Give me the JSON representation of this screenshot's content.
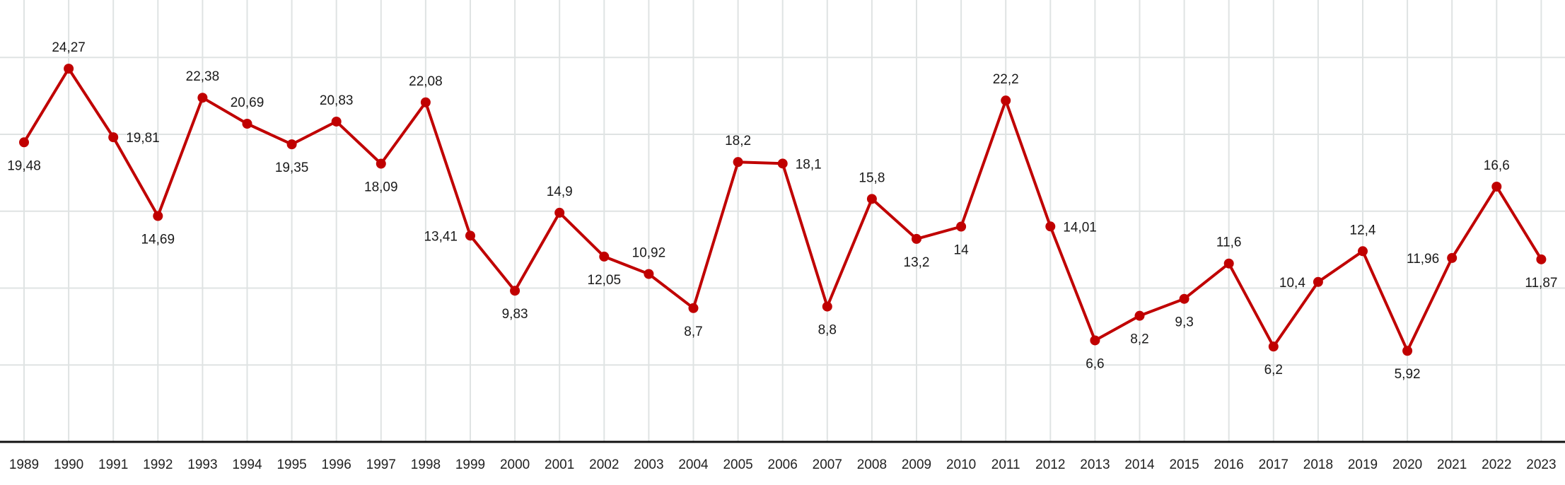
{
  "chart_data": {
    "type": "line",
    "title": "",
    "xlabel": "",
    "ylabel": "",
    "ylim": [
      0,
      27.5
    ],
    "grid": true,
    "legend": "none",
    "series_color": "#c00000",
    "x": [
      "1989",
      "1990",
      "1991",
      "1992",
      "1993",
      "1994",
      "1995",
      "1996",
      "1997",
      "1998",
      "1999",
      "2000",
      "2001",
      "2002",
      "2003",
      "2004",
      "2005",
      "2006",
      "2007",
      "2008",
      "2009",
      "2010",
      "2011",
      "2012",
      "2013",
      "2014",
      "2015",
      "2016",
      "2017",
      "2018",
      "2019",
      "2020",
      "2021",
      "2022",
      "2023"
    ],
    "series": [
      {
        "values": [
          19.48,
          24.27,
          19.81,
          14.69,
          22.38,
          20.69,
          19.35,
          20.83,
          18.09,
          22.08,
          13.41,
          9.83,
          14.9,
          12.05,
          10.92,
          8.7,
          18.2,
          18.1,
          8.8,
          15.8,
          13.2,
          14,
          22.2,
          14.01,
          6.6,
          8.2,
          9.3,
          11.6,
          6.2,
          10.4,
          12.4,
          5.92,
          11.96,
          16.6,
          11.87
        ],
        "labels": [
          "19,48",
          "24,27",
          "19,81",
          "14,69",
          "22,38",
          "20,69",
          "19,35",
          "20,83",
          "18,09",
          "22,08",
          "13,41",
          "9,83",
          "14,9",
          "12,05",
          "10,92",
          "8,7",
          "18,2",
          "18,1",
          "8,8",
          "15,8",
          "13,2",
          "14",
          "22,2",
          "14,01",
          "6,6",
          "8,2",
          "9,3",
          "11,6",
          "6,2",
          "10,4",
          "12,4",
          "5,92",
          "11,96",
          "16,6",
          "11,87"
        ]
      }
    ]
  }
}
